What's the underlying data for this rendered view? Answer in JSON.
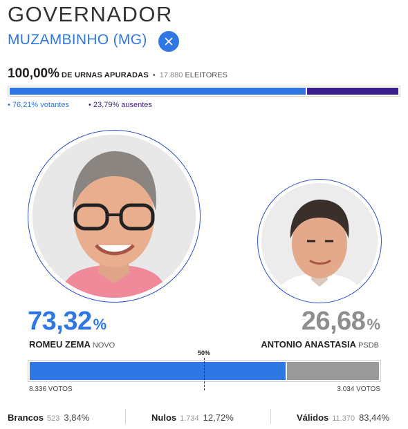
{
  "header": {
    "title": "GOVERNADOR",
    "location": "MUZAMBINHO (MG)",
    "close_icon": "close-icon"
  },
  "apuracao": {
    "percent": "100,00%",
    "label": "DE URNAS APURADAS",
    "eleitores_count": "17.880",
    "eleitores_label": "ELEITORES",
    "votantes_fraction": 0.7621,
    "votantes": "• 76,21%  votantes",
    "ausentes": "• 23,79%  ausentes"
  },
  "colors": {
    "primary_blue": "#2e77e5",
    "absent_purple": "#3b1e8f",
    "loser_gray": "#9a9a9a"
  },
  "candidates": [
    {
      "name": "ROMEU ZEMA",
      "party": "NOVO",
      "percent": "73,32",
      "percent_sign": "%",
      "votes": "8.336 VOTOS",
      "share": 0.7332
    },
    {
      "name": "ANTONIO ANASTASIA",
      "party": "PSDB",
      "percent": "26,68",
      "percent_sign": "%",
      "votes": "3.034 VOTOS",
      "share": 0.2668
    }
  ],
  "midpoint_label": "50%",
  "summary": [
    {
      "label": "Brancos",
      "count": "523",
      "percent": "3,84%"
    },
    {
      "label": "Nulos",
      "count": "1.734",
      "percent": "12,72%"
    },
    {
      "label": "Válidos",
      "count": "11.370",
      "percent": "83,44%"
    }
  ]
}
